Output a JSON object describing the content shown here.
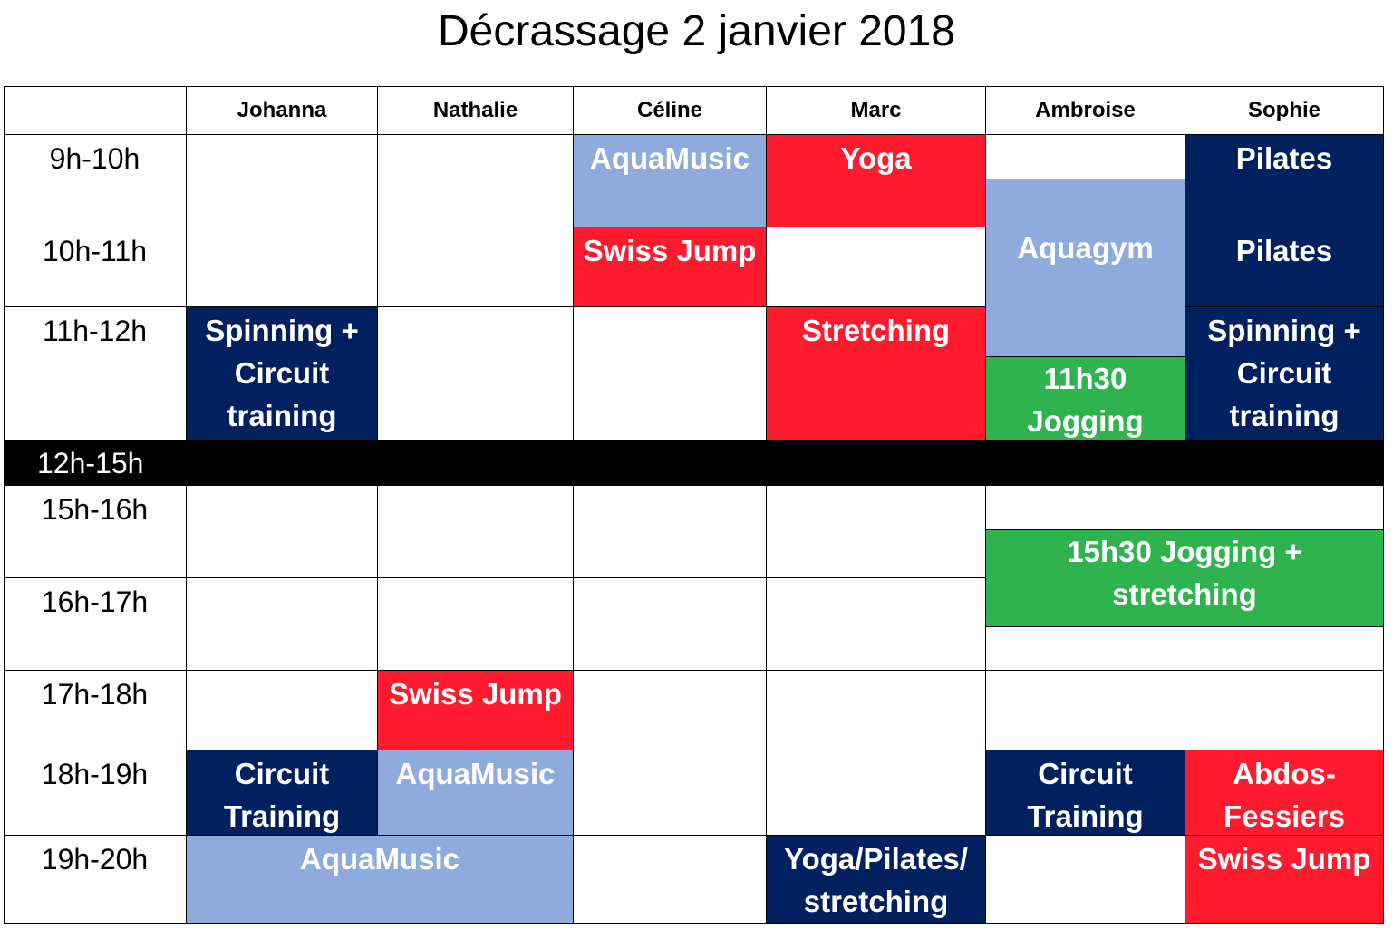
{
  "title": "Décrassage 2 janvier 2018",
  "columns": [
    "Johanna",
    "Nathalie",
    "Céline",
    "Marc",
    "Ambroise",
    "Sophie"
  ],
  "times": [
    "9h-10h",
    "10h-11h",
    "11h-12h",
    "12h-15h",
    "15h-16h",
    "16h-17h",
    "17h-18h",
    "18h-19h",
    "19h-20h"
  ],
  "colors": {
    "navy": "#002060",
    "light_blue": "#8faadc",
    "red": "#ff1a2e",
    "green": "#2eb34e"
  },
  "sessions": {
    "celine_9": "AquaMusic",
    "marc_9": "Yoga",
    "sophie_9": "Pilates",
    "ambroise_930": "Aquagym",
    "celine_10": "Swiss Jump",
    "sophie_10": "Pilates",
    "johanna_11": "Spinning + Circuit training",
    "marc_11": "Stretching",
    "ambroise_1130": "11h30 Jogging",
    "sophie_11": "Spinning + Circuit training",
    "ambroise_sophie_1530": "15h30 Jogging + stretching",
    "nathalie_17": "Swiss Jump",
    "johanna_18": "Circuit Training",
    "nathalie_18": "AquaMusic",
    "ambroise_18": "Circuit Training",
    "sophie_18": "Abdos-Fessiers",
    "johanna_nathalie_19": "AquaMusic",
    "marc_19": "Yoga/Pilates/ stretching",
    "sophie_19": "Swiss Jump"
  }
}
